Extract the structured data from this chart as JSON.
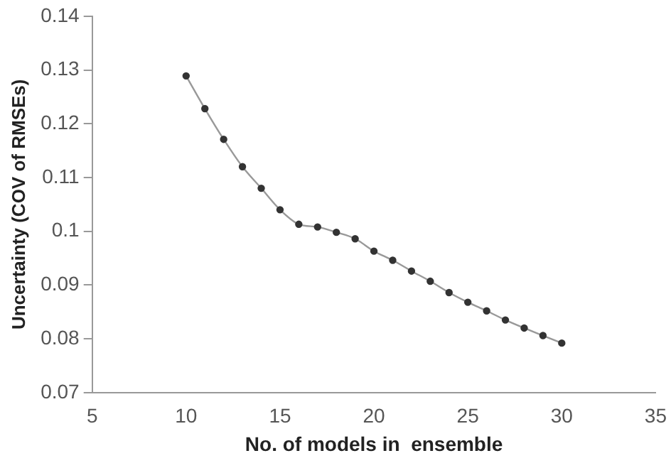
{
  "chart_data": {
    "type": "line",
    "xlabel": "No. of models in  ensemble",
    "ylabel": "Uncertainty (COV of RMSEs)",
    "x": [
      10,
      11,
      12,
      13,
      14,
      15,
      16,
      17,
      18,
      19,
      20,
      21,
      22,
      23,
      24,
      25,
      26,
      27,
      28,
      29,
      30
    ],
    "series": [
      {
        "color": "#333333",
        "values": [
          0.1289,
          0.1228,
          0.1171,
          0.112,
          0.108,
          0.104,
          0.1013,
          0.1008,
          0.0998,
          0.0986,
          0.0963,
          0.0946,
          0.0926,
          0.0907,
          0.0886,
          0.0868,
          0.0852,
          0.0835,
          0.082,
          0.0806,
          0.0792
        ]
      }
    ],
    "xlim": [
      5,
      35
    ],
    "xticks": [
      5,
      10,
      15,
      20,
      25,
      30,
      35
    ],
    "ylim": [
      0.07,
      0.14
    ],
    "yticks": [
      0.07,
      0.08,
      0.09,
      0.1,
      0.11,
      0.12,
      0.13,
      0.14
    ],
    "grid": false,
    "legend": false,
    "marker": "circle",
    "line_style": "solid"
  }
}
